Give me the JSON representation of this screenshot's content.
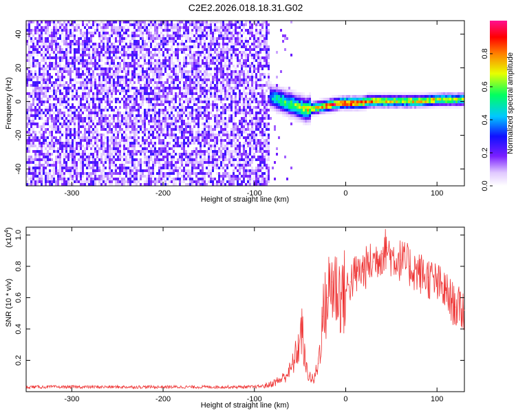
{
  "figure": {
    "title": "C2E2.2026.018.18.31.G02"
  },
  "chart_data": [
    {
      "type": "heatmap",
      "title": "C2E2.2026.018.18.31.G02",
      "xlabel": "Height of straight line (km)",
      "ylabel": "Frequency (Hz)",
      "xlim": [
        -350,
        130
      ],
      "ylim": [
        -50,
        48
      ],
      "xticks": [
        -300,
        -200,
        -100,
        0,
        100
      ],
      "xtick_labels": [
        "-300",
        "-200",
        "-100",
        "0",
        "100"
      ],
      "yticks": [
        -40,
        -20,
        0,
        20,
        40
      ],
      "ytick_labels": [
        "-40",
        "-20",
        "0",
        "20",
        "40"
      ],
      "colorbar": {
        "label": "Normalized spectral amplitude",
        "range": [
          0.0,
          1.0
        ],
        "ticks": [
          0.0,
          0.2,
          0.4,
          0.6,
          0.8
        ],
        "tick_labels": [
          "0.0",
          "0.2",
          "0.4",
          "0.6",
          "0.8"
        ]
      },
      "noise_region": {
        "x_range": [
          -350,
          -85
        ],
        "typical_amplitude": 0.15
      },
      "signal_ridge": {
        "x": [
          -95,
          -85,
          -75,
          -65,
          -55,
          -45,
          -35,
          -25,
          -15,
          -5,
          5,
          15,
          25,
          40,
          60,
          80,
          100,
          120,
          130
        ],
        "frequency": [
          7,
          4,
          2,
          0,
          -2,
          -4,
          -3,
          -2,
          -1,
          0,
          0,
          0,
          1,
          1,
          1,
          1,
          2,
          2,
          2
        ],
        "amplitude": [
          0.25,
          0.4,
          0.55,
          0.6,
          0.65,
          0.7,
          0.8,
          0.85,
          0.9,
          0.95,
          0.95,
          0.9,
          0.85,
          0.8,
          0.75,
          0.8,
          0.75,
          0.7,
          0.65
        ]
      }
    },
    {
      "type": "line",
      "xlabel": "Height of straight line (km)",
      "ylabel": "SNR (10 * v/v)",
      "yscale_label": "(x10",
      "yscale_exp": "4",
      "yscale_close": ")",
      "xlim": [
        -350,
        130
      ],
      "ylim": [
        0,
        1.05
      ],
      "xticks": [
        -300,
        -200,
        -100,
        0,
        100
      ],
      "xtick_labels": [
        "-300",
        "-200",
        "-100",
        "0",
        "100"
      ],
      "yticks": [
        0.2,
        0.4,
        0.6,
        0.8,
        1.0
      ],
      "ytick_labels": [
        "0.2",
        "0.4",
        "0.6",
        "0.8",
        "1.0"
      ],
      "series": [
        {
          "name": "SNR",
          "color": "#ee3333",
          "x": [
            -350,
            -300,
            -250,
            -200,
            -150,
            -100,
            -85,
            -70,
            -60,
            -52,
            -48,
            -44,
            -40,
            -35,
            -30,
            -25,
            -20,
            -15,
            -10,
            -5,
            0,
            5,
            10,
            20,
            30,
            40,
            45,
            50,
            60,
            70,
            80,
            90,
            100,
            110,
            120,
            130
          ],
          "y": [
            0.03,
            0.03,
            0.03,
            0.03,
            0.03,
            0.03,
            0.04,
            0.08,
            0.14,
            0.28,
            0.4,
            0.16,
            0.1,
            0.07,
            0.18,
            0.48,
            0.6,
            0.7,
            0.66,
            0.62,
            0.64,
            0.7,
            0.74,
            0.78,
            0.83,
            0.88,
            0.92,
            0.86,
            0.84,
            0.8,
            0.76,
            0.73,
            0.69,
            0.63,
            0.54,
            0.52
          ]
        }
      ]
    }
  ]
}
